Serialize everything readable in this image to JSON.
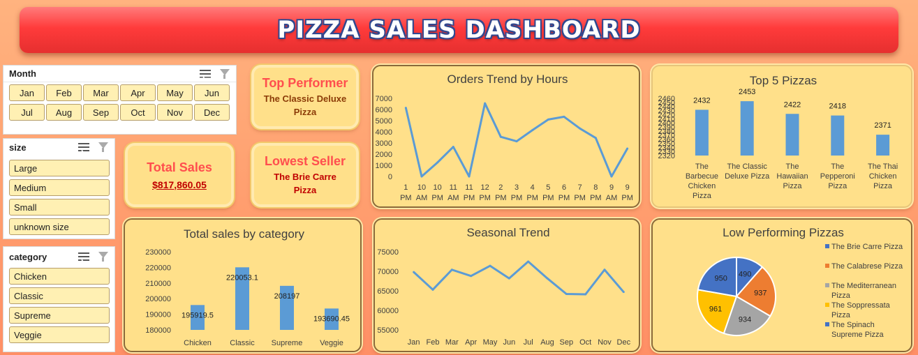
{
  "header": {
    "title": "PIZZA SALES DASHBOARD"
  },
  "slicers": {
    "month": {
      "title": "Month",
      "items": [
        "Jan",
        "Feb",
        "Mar",
        "Apr",
        "May",
        "Jun",
        "Jul",
        "Aug",
        "Sep",
        "Oct",
        "Nov",
        "Dec"
      ]
    },
    "size": {
      "title": "size",
      "items": [
        "Large",
        "Medium",
        "Small",
        "unknown size"
      ]
    },
    "category": {
      "title": "category",
      "items": [
        "Chicken",
        "Classic",
        "Supreme",
        "Veggie"
      ]
    }
  },
  "kpis": {
    "top": {
      "title": "Top Performer",
      "line1": "The Classic Deluxe",
      "line2": "Pizza"
    },
    "total": {
      "title": "Total Sales",
      "value": "$817,860.05"
    },
    "lowest": {
      "title": "Lowest Seller",
      "line1": "The Brie Carre",
      "line2": "Pizza"
    }
  },
  "colors": {
    "series": "#5b9bd5",
    "kpi_title": "#ff4e4e",
    "pie": [
      "#4472c4",
      "#ed7d31",
      "#a5a5a5",
      "#ffc000",
      "#4472c4"
    ]
  },
  "chart_data": [
    {
      "id": "orders_by_hours",
      "type": "line",
      "title": "Orders Trend by Hours",
      "x": [
        [
          "1",
          "PM"
        ],
        [
          "10",
          "AM"
        ],
        [
          "10",
          "PM"
        ],
        [
          "11",
          "AM"
        ],
        [
          "11",
          "PM"
        ],
        [
          "12",
          "PM"
        ],
        [
          "2",
          "PM"
        ],
        [
          "3",
          "PM"
        ],
        [
          "4",
          "PM"
        ],
        [
          "5",
          "PM"
        ],
        [
          "6",
          "PM"
        ],
        [
          "7",
          "PM"
        ],
        [
          "8",
          "PM"
        ],
        [
          "9",
          "AM"
        ],
        [
          "9",
          "PM"
        ]
      ],
      "values": [
        6150,
        0,
        1250,
        2650,
        0,
        6550,
        3550,
        3150,
        4150,
        5100,
        5350,
        4300,
        3450,
        0,
        2500
      ],
      "ylim": [
        0,
        7000
      ],
      "yticks": [
        0,
        1000,
        2000,
        3000,
        4000,
        5000,
        6000,
        7000
      ]
    },
    {
      "id": "top5",
      "type": "bar",
      "title": "Top 5 Pizzas",
      "categories": [
        [
          "The",
          "Barbecue",
          "Chicken",
          "Pizza"
        ],
        [
          "The Classic",
          "Deluxe Pizza"
        ],
        [
          "The",
          "Hawaiian",
          "Pizza"
        ],
        [
          "The",
          "Pepperoni",
          "Pizza"
        ],
        [
          "The Thai",
          "Chicken",
          "Pizza"
        ]
      ],
      "values": [
        2432,
        2453,
        2422,
        2418,
        2371
      ],
      "ylim": [
        2320,
        2460
      ],
      "yticks": [
        2320,
        2330,
        2340,
        2350,
        2360,
        2370,
        2380,
        2390,
        2400,
        2410,
        2420,
        2430,
        2440,
        2450,
        2460
      ]
    },
    {
      "id": "sales_by_category",
      "type": "bar",
      "title": "Total sales by category",
      "categories": [
        "Chicken",
        "Classic",
        "Supreme",
        "Veggie"
      ],
      "values": [
        195919.5,
        220053.1,
        208197,
        193690.45
      ],
      "labels": [
        "195919.5",
        "220053.1",
        "208197",
        "193690.45"
      ],
      "ylim": [
        180000,
        230000
      ],
      "yticks": [
        180000,
        190000,
        200000,
        210000,
        220000,
        230000
      ]
    },
    {
      "id": "seasonal",
      "type": "line",
      "title": "Seasonal Trend",
      "x": [
        "Jan",
        "Feb",
        "Mar",
        "Apr",
        "May",
        "Jun",
        "Jul",
        "Aug",
        "Sep",
        "Oct",
        "Nov",
        "Dec"
      ],
      "values": [
        69800,
        65300,
        70400,
        68800,
        71400,
        68200,
        72500,
        68200,
        64200,
        64100,
        70400,
        64700
      ],
      "ylim": [
        55000,
        75000
      ],
      "yticks": [
        55000,
        60000,
        65000,
        70000,
        75000
      ]
    },
    {
      "id": "low_performing",
      "type": "pie",
      "title": "Low Performing Pizzas",
      "labels": [
        "The Brie Carre Pizza",
        "The Calabrese Pizza",
        "The Mediterranean Pizza",
        "The Soppressata Pizza",
        "The Spinach Supreme Pizza"
      ],
      "legend_lines": [
        [
          "The Brie Carre Pizza"
        ],
        [
          "The Calabrese Pizza"
        ],
        [
          "The Mediterranean",
          "Pizza"
        ],
        [
          "The Soppressata",
          "Pizza"
        ],
        [
          "The Spinach",
          "Supreme Pizza"
        ]
      ],
      "values": [
        490,
        937,
        934,
        961,
        950
      ]
    }
  ]
}
